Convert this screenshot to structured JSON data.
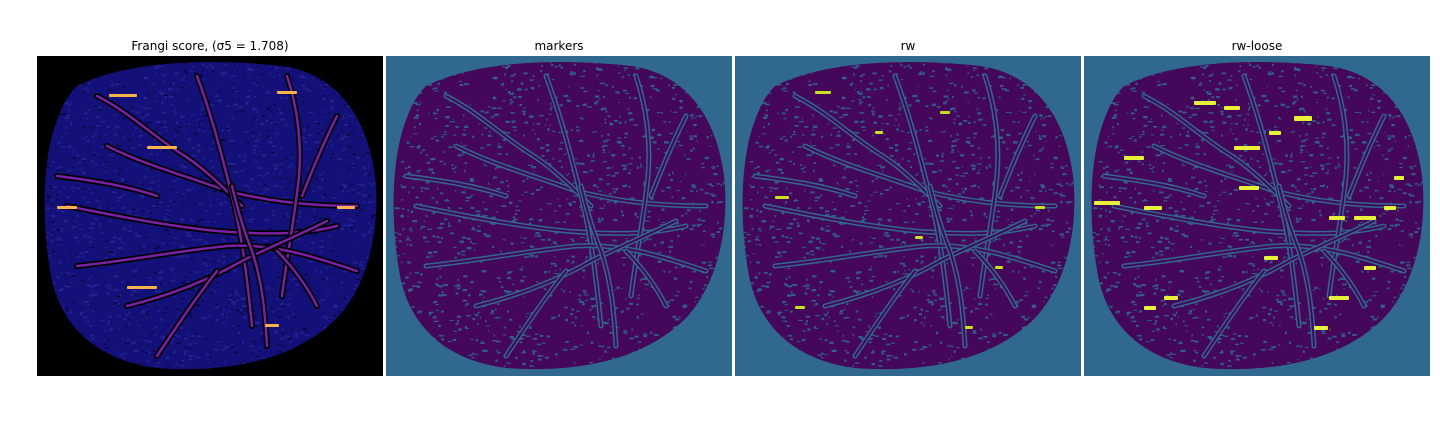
{
  "figure": {
    "panels": [
      {
        "title": "Frangi score, (σ5 = 1.708)",
        "colormap": "plasma-on-black",
        "background": "#000000",
        "blob_fill": "#14107a",
        "vessel_color": "#7a1fa6",
        "highlight_color": "#f9b34a"
      },
      {
        "title": "markers",
        "colormap": "viridis",
        "background": "#30688e",
        "blob_fill": "#44075a",
        "vessel_color": "#30688e",
        "highlight_color": "#30688e"
      },
      {
        "title": "rw",
        "colormap": "viridis",
        "background": "#30688e",
        "blob_fill": "#44075a",
        "vessel_color": "#30688e",
        "highlight_color": "#c8e020"
      },
      {
        "title": "rw-loose",
        "colormap": "viridis",
        "background": "#30688e",
        "blob_fill": "#44075a",
        "vessel_color": "#30688e",
        "highlight_color": "#e7f13a"
      }
    ]
  }
}
